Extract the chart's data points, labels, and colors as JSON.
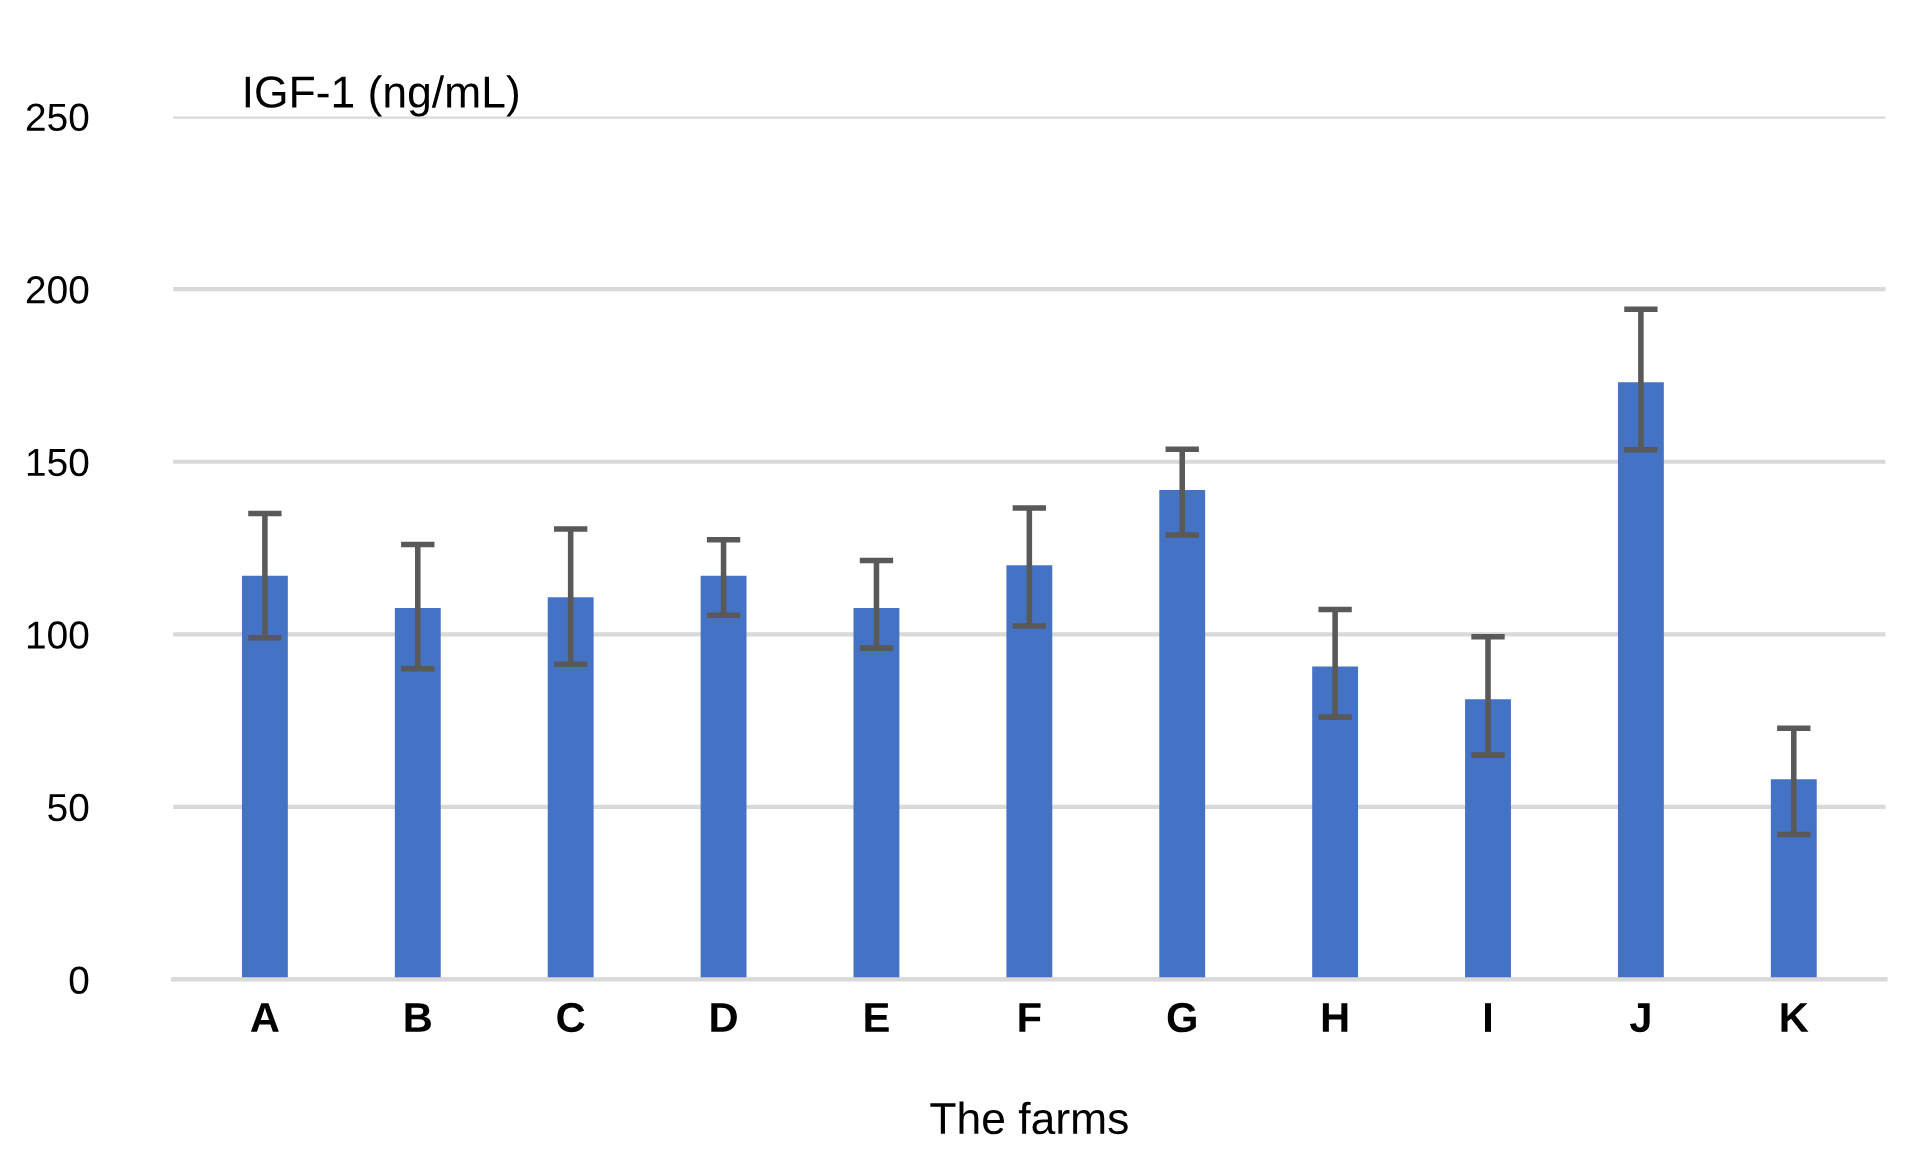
{
  "chart_data": {
    "type": "bar",
    "title": "IGF-1 (ng/mL)",
    "xlabel": "The farms",
    "categories": [
      "A",
      "B",
      "C",
      "D",
      "E",
      "F",
      "G",
      "H",
      "I",
      "J",
      "K"
    ],
    "values": [
      117,
      107.6,
      110.7,
      117,
      107.6,
      120,
      141.8,
      90.7,
      81.2,
      173,
      58
    ],
    "errors": [
      [
        99,
        135
      ],
      [
        90,
        126
      ],
      [
        91.3,
        130.5
      ],
      [
        105.5,
        127.4
      ],
      [
        96,
        121.4
      ],
      [
        102.4,
        136.6
      ],
      [
        128.8,
        153.6
      ],
      [
        76,
        107.2
      ],
      [
        65,
        99.3
      ],
      [
        153.5,
        194.2
      ],
      [
        42,
        72.8
      ]
    ],
    "color": "#4472c4",
    "ylim": [
      0,
      250
    ],
    "yticks": [
      0,
      50,
      100,
      150,
      200,
      250
    ],
    "grid": "y"
  }
}
